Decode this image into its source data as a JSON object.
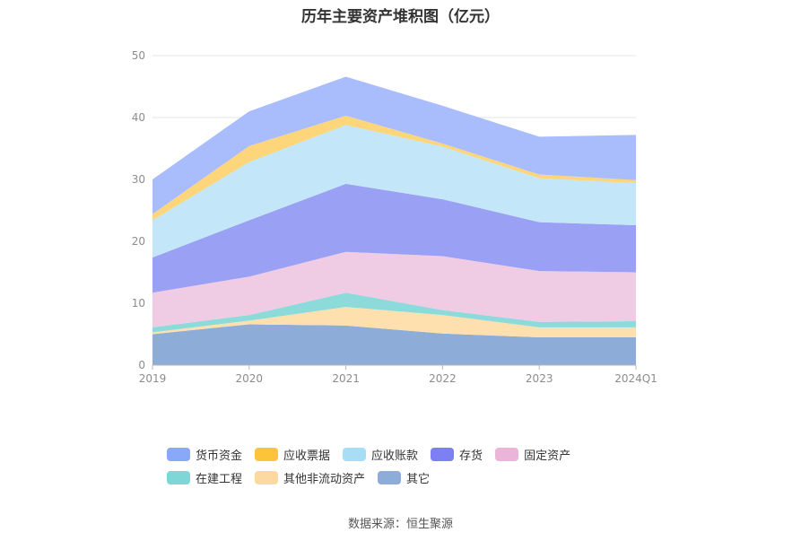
{
  "title": "历年主要资产堆积图（亿元）",
  "source": "数据来源：恒生聚源",
  "chart_data": {
    "type": "area",
    "stacked": true,
    "categories": [
      "2019",
      "2020",
      "2021",
      "2022",
      "2023",
      "2024Q1"
    ],
    "ylim": [
      0,
      50
    ],
    "yticks": [
      "0",
      "10",
      "20",
      "30",
      "40",
      "50"
    ],
    "grid": true,
    "legend_position": "bottom",
    "series": [
      {
        "name": "其它",
        "color": "#8eacd8",
        "values": [
          5.0,
          6.6,
          6.4,
          5.1,
          4.5,
          4.5
        ]
      },
      {
        "name": "其他非流动资产",
        "color": "#fde0ad",
        "values": [
          0.3,
          0.6,
          3.0,
          3.0,
          1.6,
          1.6
        ]
      },
      {
        "name": "在建工程",
        "color": "#8ddada",
        "values": [
          0.8,
          0.9,
          2.3,
          0.8,
          0.9,
          1.0
        ]
      },
      {
        "name": "固定资产",
        "color": "#efcce4",
        "values": [
          5.6,
          6.2,
          6.6,
          8.7,
          8.2,
          7.9
        ]
      },
      {
        "name": "存货",
        "color": "#9aa1f5",
        "values": [
          5.7,
          9.1,
          11.0,
          9.2,
          7.9,
          7.6
        ]
      },
      {
        "name": "应收账款",
        "color": "#c3e7f8",
        "values": [
          6.0,
          9.4,
          9.5,
          8.5,
          7.1,
          6.8
        ]
      },
      {
        "name": "应收票据",
        "color": "#fdd57a",
        "values": [
          1.0,
          2.6,
          1.5,
          0.5,
          0.6,
          0.5
        ]
      },
      {
        "name": "货币资金",
        "color": "#a9bdfc",
        "values": [
          5.6,
          5.6,
          6.3,
          6.1,
          6.1,
          7.3
        ]
      }
    ]
  },
  "legend": [
    {
      "label": "货币资金",
      "color": "#8aa8f8"
    },
    {
      "label": "应收票据",
      "color": "#fcc43a"
    },
    {
      "label": "应收账款",
      "color": "#a8def5"
    },
    {
      "label": "存货",
      "color": "#7c80f2"
    },
    {
      "label": "固定资产",
      "color": "#eab5d8"
    },
    {
      "label": "在建工程",
      "color": "#7fd6d6"
    },
    {
      "label": "其他非流动资产",
      "color": "#fcd9a0"
    },
    {
      "label": "其它",
      "color": "#8eacd8"
    }
  ]
}
